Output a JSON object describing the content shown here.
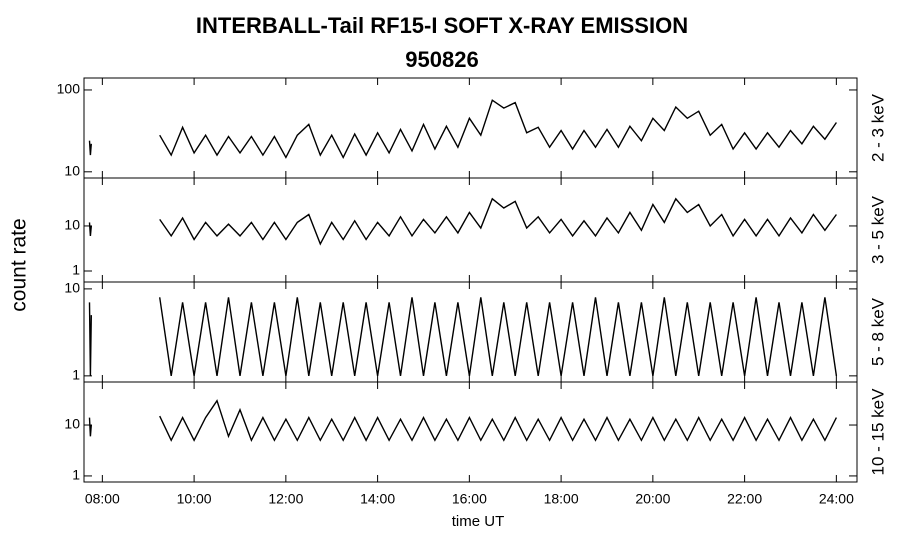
{
  "title": "INTERBALL-Tail RF15-I SOFT X-RAY EMISSION",
  "subtitle": "950826",
  "xlabel": "time UT",
  "ylabel": "count rate",
  "xlim": [
    7.6,
    24.45
  ],
  "xticks": [
    {
      "value": 8,
      "label": "08:00"
    },
    {
      "value": 10,
      "label": "10:00"
    },
    {
      "value": 12,
      "label": "12:00"
    },
    {
      "value": 14,
      "label": "14:00"
    },
    {
      "value": 16,
      "label": "16:00"
    },
    {
      "value": 18,
      "label": "18:00"
    },
    {
      "value": 20,
      "label": "20:00"
    },
    {
      "value": 22,
      "label": "22:00"
    },
    {
      "value": 24,
      "label": "24:00"
    }
  ],
  "chart_data": [
    {
      "type": "line",
      "log": true,
      "ylim": [
        8.4,
        140
      ],
      "yticks": [
        10,
        100
      ],
      "x": [
        7.72,
        7.74,
        7.76,
        8.5,
        9.25,
        9.5,
        9.75,
        10,
        10.25,
        10.5,
        10.75,
        11,
        11.25,
        11.5,
        11.75,
        12,
        12.25,
        12.5,
        12.75,
        13,
        13.25,
        13.5,
        13.75,
        14,
        14.25,
        14.5,
        14.75,
        15,
        15.25,
        15.5,
        15.75,
        16,
        16.25,
        16.5,
        16.75,
        17,
        17.25,
        17.5,
        17.75,
        18,
        18.25,
        18.5,
        18.75,
        19,
        19.25,
        19.5,
        19.75,
        20,
        20.25,
        20.5,
        20.75,
        21,
        21.25,
        21.5,
        21.75,
        22,
        22.25,
        22.5,
        22.75,
        23,
        23.25,
        23.5,
        23.75,
        24
      ],
      "series": [
        {
          "name": "2 - 3 keV",
          "color": "#000000",
          "values": [
            24,
            16,
            22,
            null,
            28,
            16,
            35,
            17,
            28,
            16,
            27,
            17,
            27,
            16,
            27,
            15,
            28,
            38,
            16,
            28,
            15,
            29,
            16,
            30,
            17,
            33,
            18,
            38,
            19,
            36,
            20,
            45,
            28,
            75,
            60,
            70,
            30,
            35,
            20,
            32,
            19,
            32,
            20,
            33,
            20,
            36,
            24,
            45,
            32,
            62,
            45,
            55,
            28,
            38,
            19,
            30,
            19,
            30,
            20,
            32,
            22,
            36,
            25,
            40
          ]
        }
      ]
    },
    {
      "type": "line",
      "log": true,
      "ylim": [
        0.57,
        116
      ],
      "yticks": [
        1,
        10
      ],
      "x": [
        7.72,
        7.74,
        7.76,
        8.5,
        9.25,
        9.5,
        9.75,
        10,
        10.25,
        10.5,
        10.75,
        11,
        11.25,
        11.5,
        11.75,
        12,
        12.25,
        12.5,
        12.75,
        13,
        13.25,
        13.5,
        13.75,
        14,
        14.25,
        14.5,
        14.75,
        15,
        15.25,
        15.5,
        15.75,
        16,
        16.25,
        16.5,
        16.75,
        17,
        17.25,
        17.5,
        17.75,
        18,
        18.25,
        18.5,
        18.75,
        19,
        19.25,
        19.5,
        19.75,
        20,
        20.25,
        20.5,
        20.75,
        21,
        21.25,
        21.5,
        21.75,
        22,
        22.25,
        22.5,
        22.75,
        23,
        23.25,
        23.5,
        23.75,
        24
      ],
      "series": [
        {
          "name": "3 - 5 keV",
          "color": "#000000",
          "values": [
            12,
            6,
            10,
            null,
            14,
            6,
            15,
            5,
            12,
            6,
            11,
            6,
            12,
            5,
            12,
            5,
            12,
            18,
            4,
            12,
            5,
            13,
            5,
            12,
            6,
            16,
            6,
            14,
            7,
            16,
            7,
            20,
            9,
            40,
            25,
            35,
            9,
            16,
            7,
            14,
            6,
            13,
            6,
            15,
            7,
            20,
            8,
            30,
            12,
            40,
            20,
            30,
            10,
            18,
            6,
            14,
            6,
            14,
            6,
            15,
            7,
            18,
            8,
            18
          ]
        }
      ]
    },
    {
      "type": "line",
      "log": true,
      "ylim": [
        0.85,
        12
      ],
      "yticks": [
        1,
        10
      ],
      "x": [
        7.72,
        7.74,
        7.76,
        8.5,
        9.25,
        9.5,
        9.75,
        10,
        10.25,
        10.5,
        10.75,
        11,
        11.25,
        11.5,
        11.75,
        12,
        12.25,
        12.5,
        12.75,
        13,
        13.25,
        13.5,
        13.75,
        14,
        14.25,
        14.5,
        14.75,
        15,
        15.25,
        15.5,
        15.75,
        16,
        16.25,
        16.5,
        16.75,
        17,
        17.25,
        17.5,
        17.75,
        18,
        18.25,
        18.5,
        18.75,
        19,
        19.25,
        19.5,
        19.75,
        20,
        20.25,
        20.5,
        20.75,
        21,
        21.25,
        21.5,
        21.75,
        22,
        22.25,
        22.5,
        22.75,
        23,
        23.25,
        23.5,
        23.75,
        24
      ],
      "series": [
        {
          "name": "5 - 8 keV",
          "color": "#000000",
          "values": [
            7,
            1,
            5,
            null,
            8,
            1,
            7,
            1,
            7,
            1,
            8,
            1,
            7,
            1,
            7,
            1,
            8,
            1,
            7,
            1,
            7,
            1,
            7,
            1,
            7,
            1,
            8,
            1,
            7,
            1,
            7,
            1,
            8,
            1,
            7,
            1,
            7,
            1,
            7,
            1,
            7,
            1,
            8,
            1,
            7,
            1,
            7,
            1,
            8,
            1,
            7,
            1,
            7,
            1,
            7,
            1,
            8,
            1,
            7,
            1,
            7,
            1,
            8,
            1
          ]
        }
      ]
    },
    {
      "type": "line",
      "log": true,
      "ylim": [
        0.76,
        70
      ],
      "yticks": [
        1,
        10
      ],
      "x": [
        7.72,
        7.74,
        7.76,
        8.5,
        9.25,
        9.5,
        9.75,
        10,
        10.25,
        10.5,
        10.75,
        11,
        11.25,
        11.5,
        11.75,
        12,
        12.25,
        12.5,
        12.75,
        13,
        13.25,
        13.5,
        13.75,
        14,
        14.25,
        14.5,
        14.75,
        15,
        15.25,
        15.5,
        15.75,
        16,
        16.25,
        16.5,
        16.75,
        17,
        17.25,
        17.5,
        17.75,
        18,
        18.25,
        18.5,
        18.75,
        19,
        19.25,
        19.5,
        19.75,
        20,
        20.25,
        20.5,
        20.75,
        21,
        21.25,
        21.5,
        21.75,
        22,
        22.25,
        22.5,
        22.75,
        23,
        23.25,
        23.5,
        23.75,
        24
      ],
      "series": [
        {
          "name": "10 - 15 keV",
          "color": "#000000",
          "values": [
            14,
            6,
            10,
            null,
            15,
            5,
            14,
            5,
            14,
            30,
            6,
            20,
            5,
            14,
            5,
            13,
            5,
            14,
            5,
            13,
            5,
            14,
            5,
            14,
            5,
            13,
            5,
            14,
            5,
            13,
            5,
            14,
            5,
            13,
            5,
            14,
            5,
            13,
            5,
            14,
            5,
            13,
            5,
            14,
            5,
            13,
            5,
            14,
            5,
            13,
            5,
            14,
            5,
            13,
            5,
            14,
            5,
            13,
            5,
            14,
            5,
            13,
            5,
            14
          ]
        }
      ]
    }
  ]
}
